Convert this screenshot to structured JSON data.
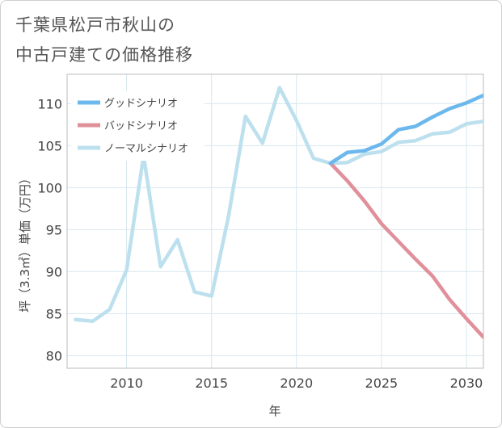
{
  "title_lines": [
    "千葉県松戸市秋山の",
    "中古戸建ての価格推移"
  ],
  "chart_data": {
    "type": "line",
    "xlabel": "年",
    "ylabel": "坪（3.3㎡）単価（万円）",
    "xlim": [
      2006.5,
      2031
    ],
    "ylim": [
      78.5,
      113.5
    ],
    "x_ticks": [
      2010,
      2015,
      2020,
      2025,
      2030
    ],
    "y_ticks": [
      80,
      85,
      90,
      95,
      100,
      105,
      110
    ],
    "grid": true,
    "legend_position": "top-left",
    "series": [
      {
        "name": "グッドシナリオ",
        "color": "#6cb8ec",
        "x": [
          2022,
          2023,
          2024,
          2025,
          2026,
          2027,
          2028,
          2029,
          2030,
          2031
        ],
        "y": [
          102.9,
          104.2,
          104.4,
          105.2,
          106.9,
          107.3,
          108.4,
          109.4,
          110.1,
          111.0
        ]
      },
      {
        "name": "バッドシナリオ",
        "color": "#e0909a",
        "x": [
          2022,
          2023,
          2024,
          2025,
          2026,
          2027,
          2028,
          2029,
          2030,
          2031
        ],
        "y": [
          102.9,
          100.8,
          98.4,
          95.7,
          93.6,
          91.5,
          89.5,
          86.7,
          84.4,
          82.2
        ]
      },
      {
        "name": "ノーマルシナリオ",
        "color": "#bde0ee",
        "x": [
          2007,
          2008,
          2009,
          2010,
          2011,
          2012,
          2013,
          2014,
          2015,
          2016,
          2017,
          2018,
          2019,
          2020,
          2021,
          2022,
          2023,
          2024,
          2025,
          2026,
          2027,
          2028,
          2029,
          2030,
          2031
        ],
        "y": [
          84.3,
          84.1,
          85.5,
          90.2,
          103.8,
          90.6,
          93.8,
          87.6,
          87.1,
          96.6,
          108.5,
          105.3,
          111.9,
          108.0,
          103.5,
          102.9,
          103.0,
          104.0,
          104.3,
          105.4,
          105.6,
          106.4,
          106.6,
          107.6,
          107.9
        ]
      }
    ]
  }
}
